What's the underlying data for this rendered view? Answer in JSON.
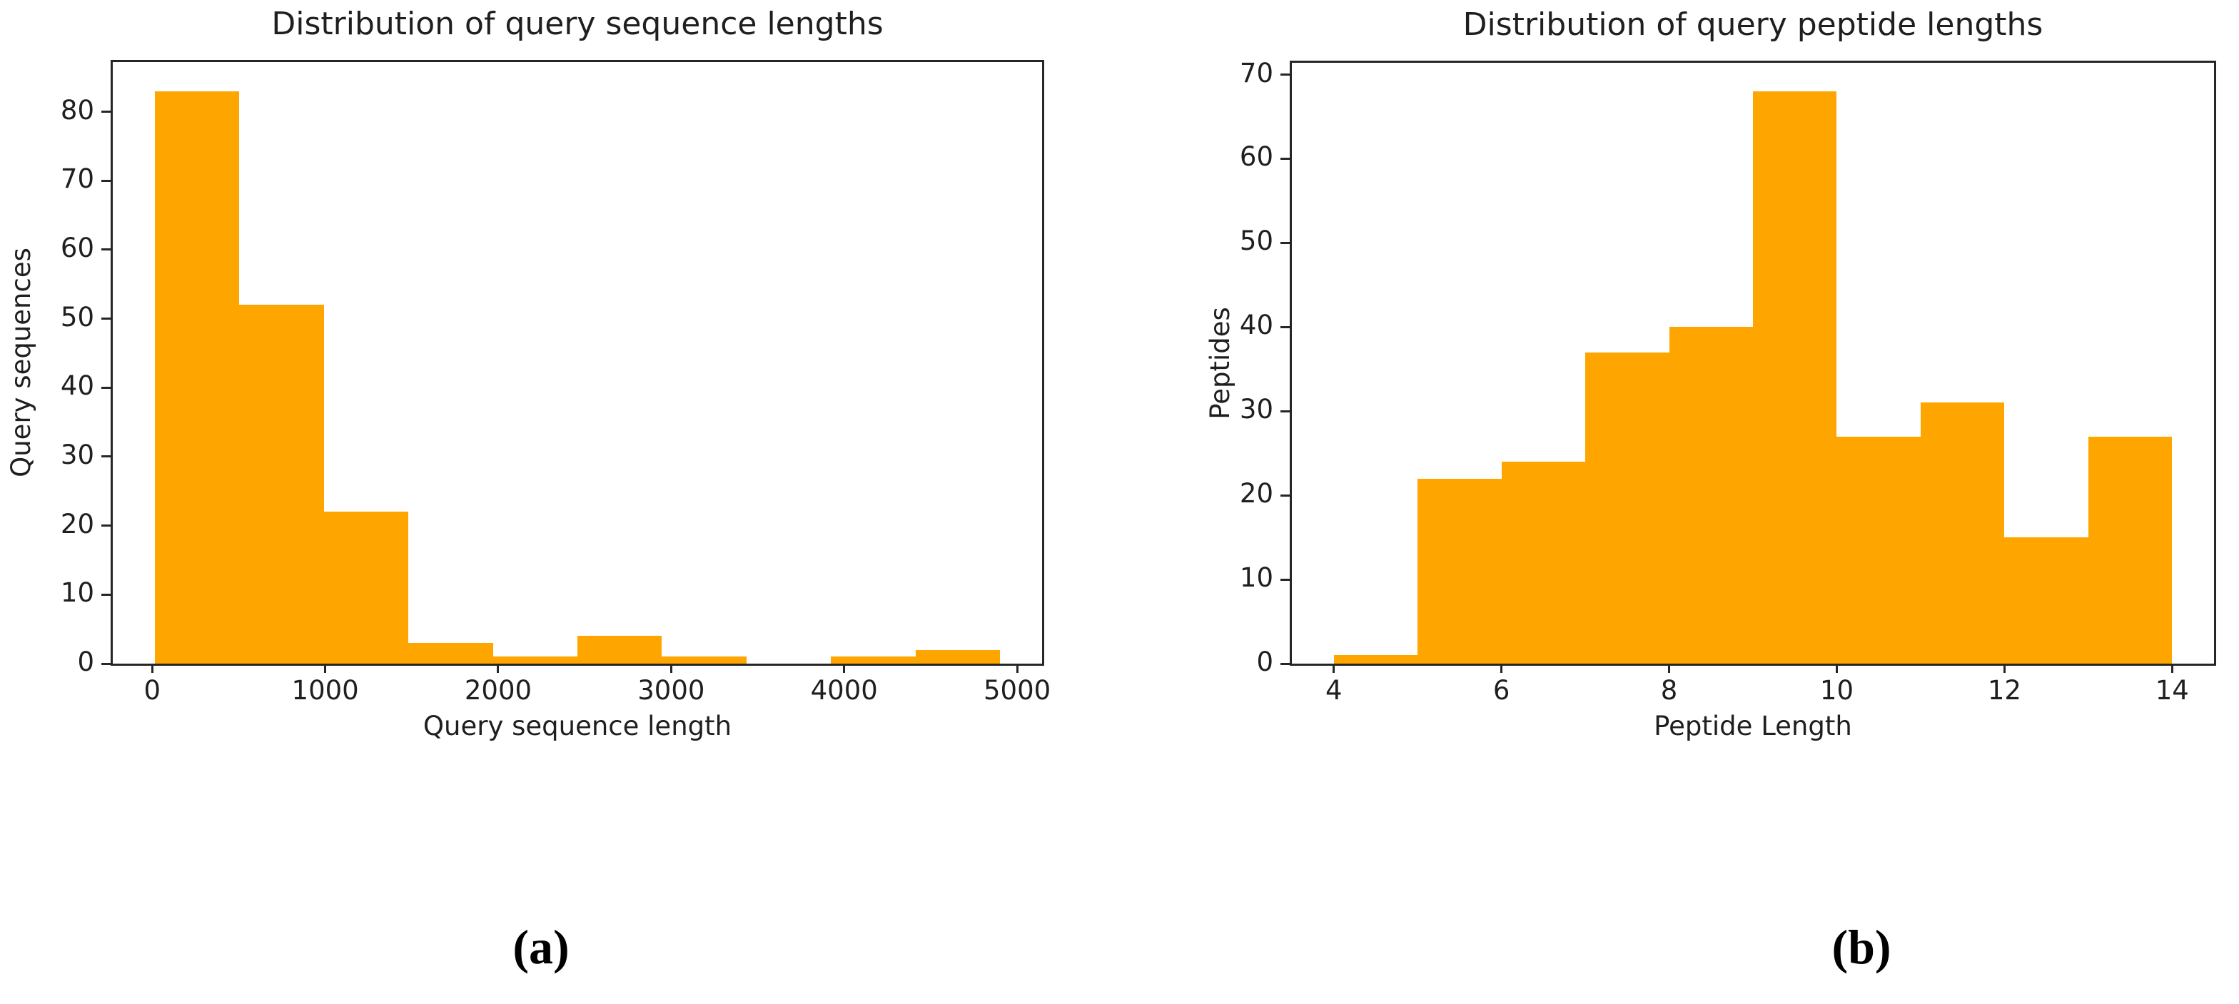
{
  "figure": {
    "background": "#ffffff",
    "axis_color": "#262626",
    "text_color": "#1f1f1f",
    "captions": [
      {
        "label": "(a)"
      },
      {
        "label": "(b)"
      }
    ]
  },
  "chart_data": [
    {
      "type": "bar",
      "subtype": "histogram",
      "title": "Distribution of query sequence lengths",
      "xlabel": "Query sequence length",
      "ylabel": "Query sequences",
      "bar_color": "#FFA500",
      "bin_edges": [
        16,
        504,
        993,
        1481,
        1970,
        2458,
        2946,
        3435,
        3923,
        4412,
        4900
      ],
      "values": [
        83,
        52,
        22,
        3,
        1,
        4,
        1,
        0,
        1,
        2
      ],
      "x_ticks": [
        0,
        1000,
        2000,
        3000,
        4000,
        5000
      ],
      "y_ticks": [
        0,
        10,
        20,
        30,
        40,
        50,
        60,
        70,
        80
      ],
      "xlim": [
        -228,
        5144
      ],
      "ylim": [
        0,
        87.2
      ],
      "grid": false,
      "legend": null
    },
    {
      "type": "bar",
      "subtype": "histogram",
      "title": "Distribution of query peptide lengths",
      "xlabel": "Peptide Length",
      "ylabel": "Peptides",
      "bar_color": "#FFA500",
      "bin_edges": [
        4,
        5,
        6,
        7,
        8,
        9,
        10,
        11,
        12,
        13,
        14
      ],
      "values": [
        1,
        22,
        24,
        37,
        40,
        68,
        27,
        31,
        15,
        27
      ],
      "x_ticks": [
        4,
        6,
        8,
        10,
        12,
        14
      ],
      "y_ticks": [
        0,
        10,
        20,
        30,
        40,
        50,
        60,
        70
      ],
      "xlim": [
        3.5,
        14.5
      ],
      "ylim": [
        0,
        71.4
      ],
      "grid": false,
      "legend": null
    }
  ]
}
